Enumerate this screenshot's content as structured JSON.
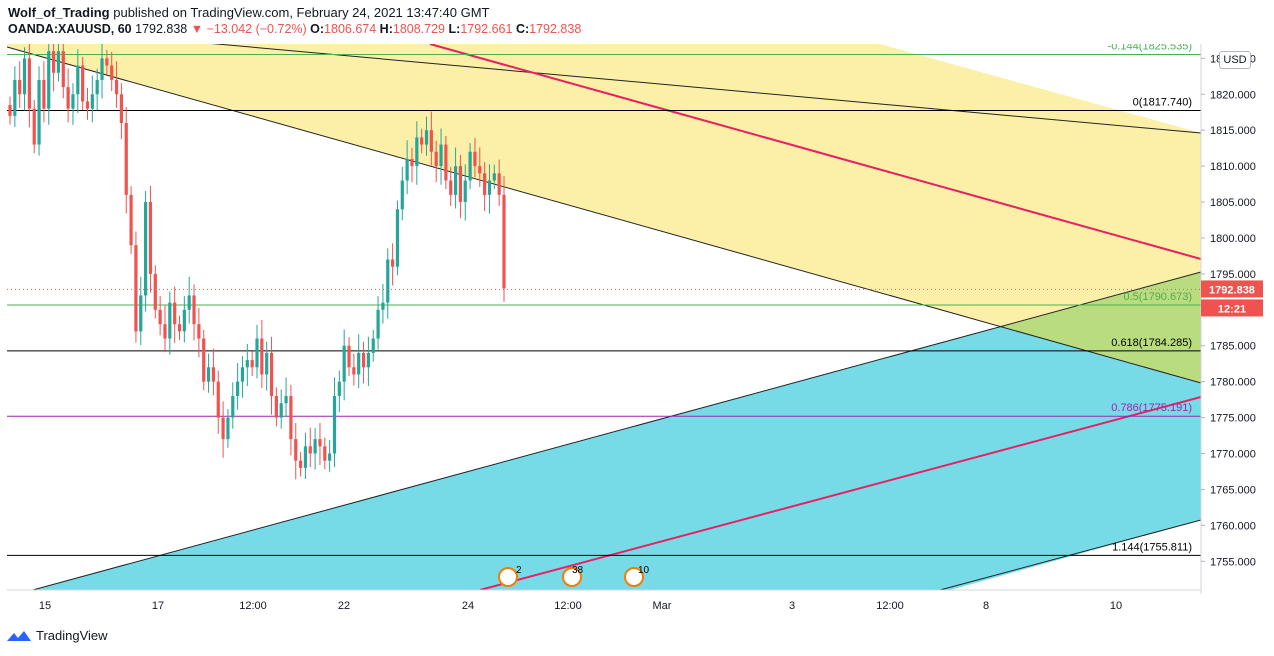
{
  "header": {
    "author": "Wolf_of_Trading",
    "published": "published on TradingView.com, February 24, 2021 13:47:40 GMT",
    "symbol": "OANDA:XAUUSD, 60",
    "last": "1792.838",
    "change": "▼ −13.042 (−0.72%)",
    "o_label": "O:",
    "o_value": "1806.674",
    "h_label": "H:",
    "h_value": "1808.729",
    "l_label": "L:",
    "l_value": "1792.661",
    "c_label": "C:",
    "c_value": "1792.838"
  },
  "currency_button": "USD",
  "footer": {
    "brand": "TradingView"
  },
  "colors": {
    "up": "#26a69a",
    "down": "#ef5350",
    "yellow_channel": "#fbe98b",
    "blue_channel": "#6fd9e6",
    "red_line": "#e91e63",
    "price_label": "#ef5350"
  },
  "chart_data": {
    "type": "candlestick",
    "y_axis": {
      "range": [
        1751,
        1827
      ],
      "ticks": [
        1825,
        1820,
        1815,
        1810,
        1805,
        1800,
        1795,
        1790,
        1785,
        1780,
        1775,
        1770,
        1765,
        1760,
        1755
      ],
      "tick_labels": [
        "1825.000",
        "1820.000",
        "1815.000",
        "1810.000",
        "1805.000",
        "1800.000",
        "1795.000",
        "1790.000",
        "1785.000",
        "1780.000",
        "1775.000",
        "1770.000",
        "1765.000",
        "1760.000",
        "1755.000"
      ]
    },
    "x_axis": {
      "tick_labels": [
        "15",
        "17",
        "12:00",
        "22",
        "24",
        "12:00",
        "Mar",
        "3",
        "12:00",
        "8",
        "10"
      ]
    },
    "last_price_label": "1792.838",
    "countdown_label": "12:21",
    "fib_levels": [
      {
        "label": "-0.144(1825.535)",
        "price": 1825.535,
        "color": "#4caf50"
      },
      {
        "label": "0(1817.740)",
        "price": 1817.74,
        "color": "#000000"
      },
      {
        "label": "0.5(1790.673)",
        "price": 1790.673,
        "color": "#4caf50"
      },
      {
        "label": "0.618(1784.285)",
        "price": 1784.285,
        "color": "#000000"
      },
      {
        "label": "0.786(1775.191)",
        "price": 1775.191,
        "color": "#9c27b0"
      },
      {
        "label": "1.144(1755.811)",
        "price": 1755.811,
        "color": "#000000"
      }
    ],
    "event_markers": [
      "2",
      "38",
      "10"
    ],
    "closes": [
      1817,
      1822,
      1820,
      1825,
      1818,
      1813,
      1822,
      1818,
      1826,
      1823,
      1826,
      1821,
      1818,
      1820,
      1824,
      1819,
      1818,
      1820,
      1822,
      1825,
      1824,
      1822,
      1820,
      1816,
      1806,
      1799,
      1787,
      1792,
      1805,
      1795,
      1790,
      1788,
      1786,
      1791,
      1788,
      1787,
      1790,
      1792,
      1788,
      1786,
      1780,
      1782,
      1780,
      1775,
      1772,
      1775,
      1778,
      1780,
      1782,
      1783,
      1782,
      1786,
      1781,
      1784,
      1778,
      1775,
      1777,
      1778,
      1772,
      1769,
      1768,
      1771,
      1770,
      1772,
      1771,
      1769,
      1770,
      1778,
      1780,
      1785,
      1782,
      1781,
      1784,
      1782,
      1784,
      1786,
      1790,
      1791,
      1797,
      1796,
      1804,
      1808,
      1811,
      1810,
      1814,
      1813,
      1815,
      1812,
      1810,
      1813,
      1808,
      1806,
      1810,
      1805,
      1808,
      1812,
      1810,
      1809,
      1806,
      1808,
      1809,
      1806,
      1793
    ]
  }
}
